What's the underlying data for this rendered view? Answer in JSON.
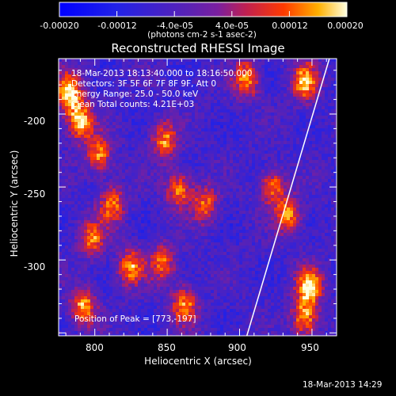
{
  "chart_data": {
    "type": "heatmap",
    "title": "Reconstructed RHESSI Image",
    "xlabel": "Heliocentric X (arcsec)",
    "ylabel": "Heliocentric Y (arcsec)",
    "xlim": [
      775,
      967
    ],
    "ylim": [
      -352,
      -162
    ],
    "x_ticks": [
      "800",
      "850",
      "900",
      "950"
    ],
    "x_tick_values": [
      800,
      850,
      900,
      950
    ],
    "y_ticks": [
      "-200",
      "-250",
      "-300"
    ],
    "y_tick_values": [
      -200,
      -250,
      -300
    ],
    "colorbar": {
      "min": -0.0002,
      "max": 0.0002,
      "tick_labels": [
        "-0.00020",
        "-0.00012",
        "-4.0e-05",
        "4.0e-05",
        "0.00012",
        "0.00020"
      ],
      "tick_values": [
        -0.0002,
        -0.00012,
        -4e-05,
        4e-05,
        0.00012,
        0.0002
      ],
      "unit_label": "(photons cm-2 s-1 asec-2)"
    },
    "peak_blobs": [
      {
        "x": 782,
        "y": -185,
        "intensity": 0.0002
      },
      {
        "x": 790,
        "y": -205,
        "intensity": 0.00018
      },
      {
        "x": 945,
        "y": -178,
        "intensity": 0.00017
      },
      {
        "x": 905,
        "y": -176,
        "intensity": 0.00014
      },
      {
        "x": 803,
        "y": -228,
        "intensity": 0.00013
      },
      {
        "x": 848,
        "y": -218,
        "intensity": 0.00013
      },
      {
        "x": 858,
        "y": -252,
        "intensity": 0.00012
      },
      {
        "x": 876,
        "y": -262,
        "intensity": 0.00011
      },
      {
        "x": 812,
        "y": -262,
        "intensity": 0.00012
      },
      {
        "x": 798,
        "y": -285,
        "intensity": 0.00012
      },
      {
        "x": 825,
        "y": -305,
        "intensity": 0.00014
      },
      {
        "x": 847,
        "y": -302,
        "intensity": 0.00011
      },
      {
        "x": 792,
        "y": -332,
        "intensity": 0.00015
      },
      {
        "x": 862,
        "y": -331,
        "intensity": 0.00014
      },
      {
        "x": 923,
        "y": -250,
        "intensity": 0.00012
      },
      {
        "x": 934,
        "y": -270,
        "intensity": 0.00013
      },
      {
        "x": 948,
        "y": -318,
        "intensity": 0.00019
      },
      {
        "x": 945,
        "y": -340,
        "intensity": 0.00015
      }
    ],
    "limb_line": [
      {
        "x": 905,
        "y": -352
      },
      {
        "x": 962,
        "y": -162
      }
    ],
    "grid": false
  },
  "info": {
    "time_range": "18-Mar-2013 18:13:40.000 to 18:16:50.000",
    "detectors": "Detectors: 3F 5F 6F 7F 8F 9F, Att 0",
    "energy_range": "Energy Range: 25.0 - 50.0 keV",
    "algorithm": "Clean    Total counts: 4.21E+03",
    "peak_position": "Position of Peak = [773,-197]"
  },
  "timestamp": "18-Mar-2013 14:29"
}
